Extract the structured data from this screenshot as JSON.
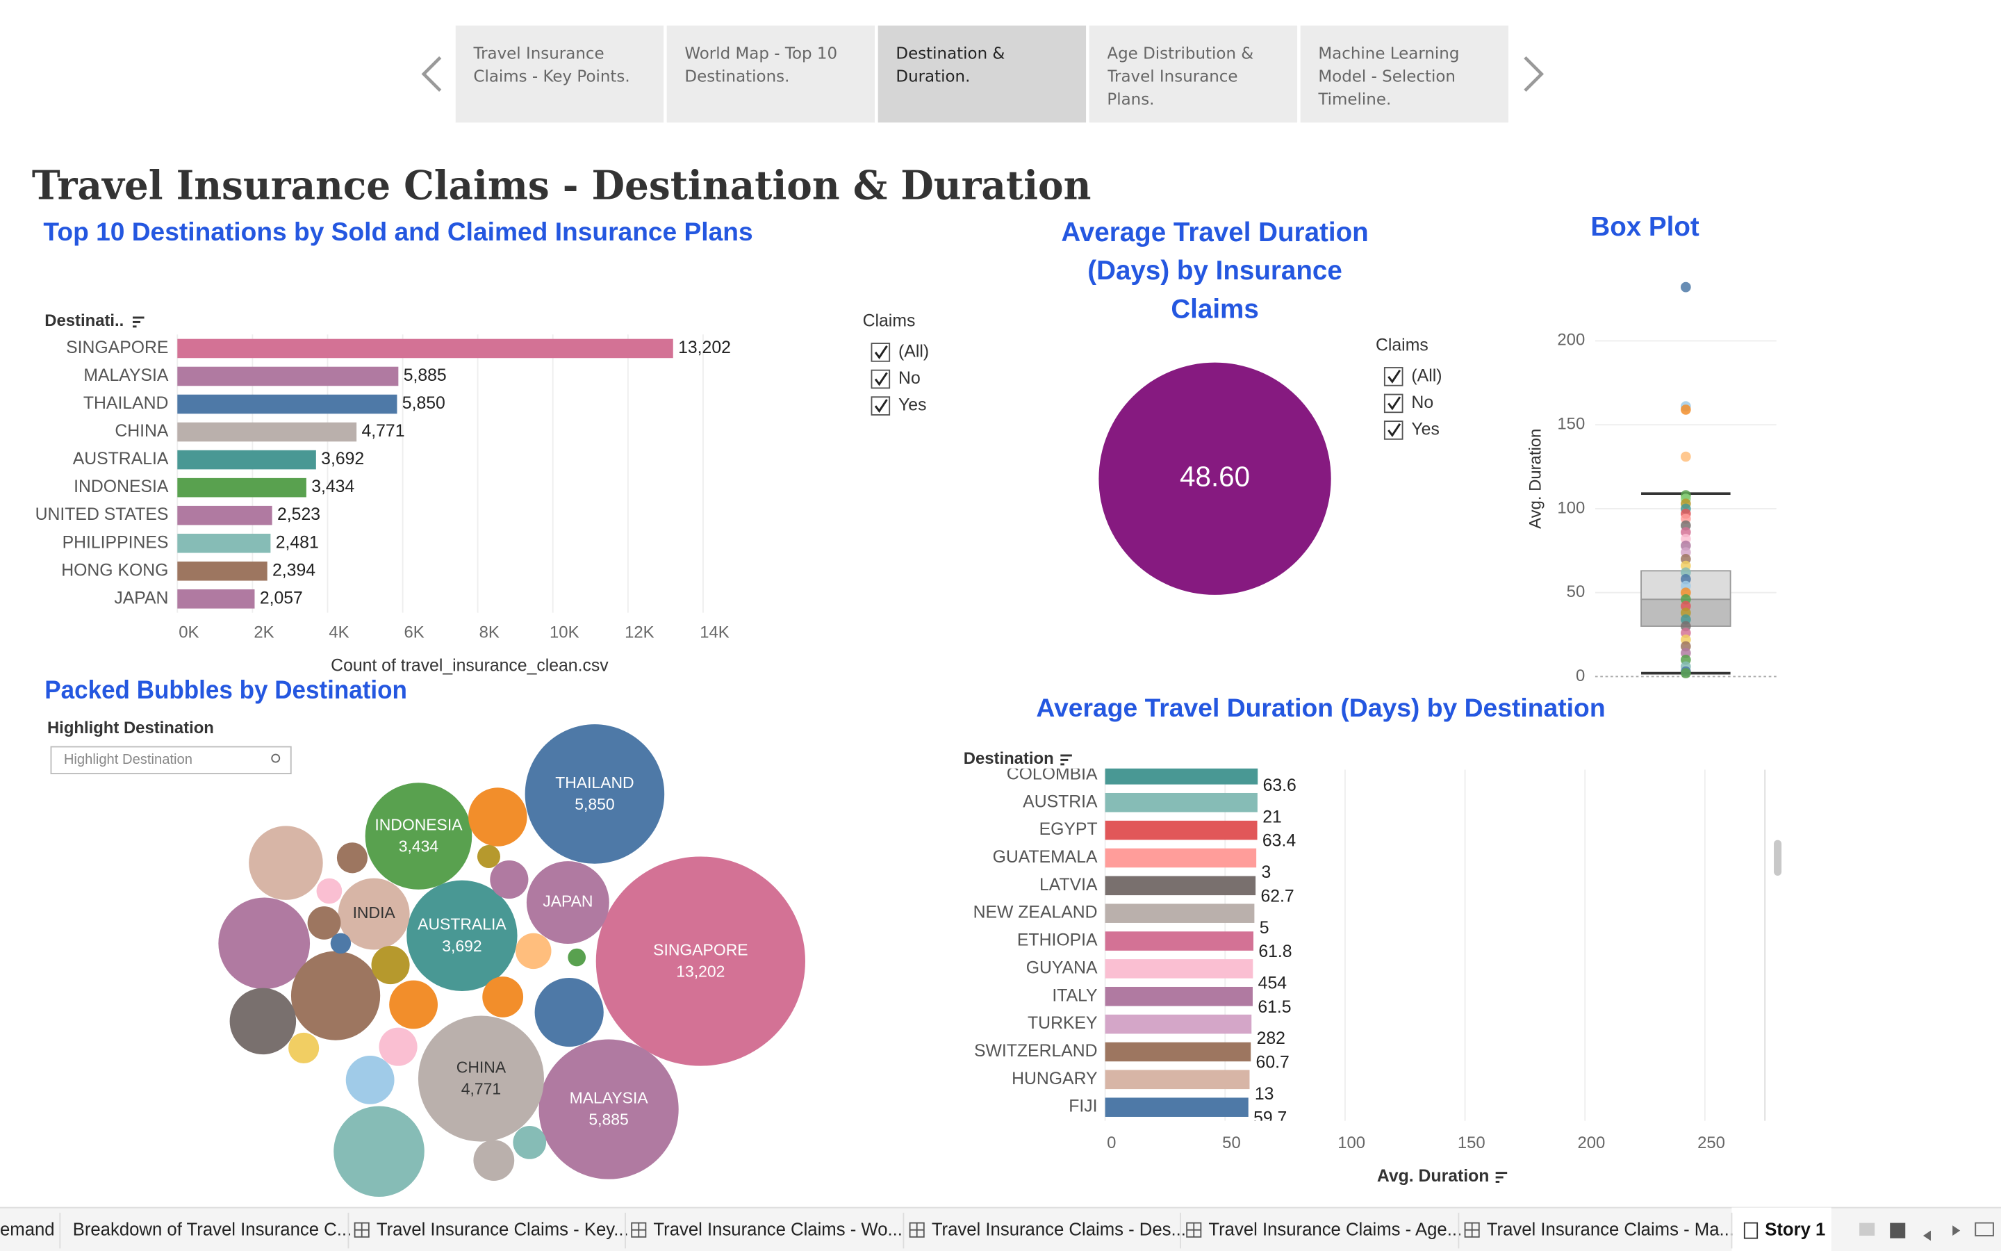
{
  "nav": {
    "tabs": [
      "Travel Insurance Claims - Key Points.",
      "World Map - Top 10 Destinations.",
      "Destination & Duration.",
      "Age Distribution & Travel Insurance Plans.",
      "Machine Learning Model - Selection Timeline."
    ],
    "selected": 2
  },
  "page_title": "Travel Insurance Claims - Destination & Duration",
  "chart_data": [
    {
      "type": "hbar",
      "title": "Top 10 Destinations by Sold and Claimed Insurance Plans",
      "y_header": "Destinati..",
      "x_label": "Count of travel_insurance_clean.csv",
      "categories": [
        "SINGAPORE",
        "MALAYSIA",
        "THAILAND",
        "CHINA",
        "AUSTRALIA",
        "INDONESIA",
        "UNITED STATES",
        "PHILIPPINES",
        "HONG KONG",
        "JAPAN"
      ],
      "values": [
        13202,
        5885,
        5850,
        4771,
        3692,
        3434,
        2523,
        2481,
        2394,
        2057
      ],
      "value_labels": [
        "13,202",
        "5,885",
        "5,850",
        "4,771",
        "3,692",
        "3,434",
        "2,523",
        "2,481",
        "2,394",
        "2,057"
      ],
      "colors": [
        "#d37295",
        "#b07aa1",
        "#4e79a7",
        "#bab0ac",
        "#499894",
        "#59a14f",
        "#b07aa1",
        "#86bcb6",
        "#9d7660",
        "#b07aa1"
      ],
      "xlim": [
        0,
        15600
      ],
      "xticks": [
        {
          "value": 0,
          "label": "0K"
        },
        {
          "value": 2000,
          "label": "2K"
        },
        {
          "value": 4000,
          "label": "4K"
        },
        {
          "value": 6000,
          "label": "6K"
        },
        {
          "value": 8000,
          "label": "8K"
        },
        {
          "value": 10000,
          "label": "10K"
        },
        {
          "value": 12000,
          "label": "12K"
        },
        {
          "value": 14000,
          "label": "14K"
        }
      ],
      "grid": true,
      "filter": {
        "title": "Claims",
        "options": [
          "(All)",
          "No",
          "Yes"
        ]
      }
    },
    {
      "type": "pie",
      "title": "Average Travel Duration (Days) by Insurance Claims",
      "values": [
        48.6
      ],
      "value_labels": [
        "48.60"
      ],
      "color": "#861a80",
      "filter": {
        "title": "Claims",
        "options": [
          "(All)",
          "No",
          "Yes"
        ]
      }
    },
    {
      "type": "box",
      "title": "Box Plot",
      "y_label": "Avg. Duration",
      "ylim": [
        0,
        240
      ],
      "yticks": [
        0,
        50,
        100,
        150,
        200
      ],
      "grid": true,
      "q1": 30,
      "median": 46,
      "q3": 63,
      "whisker_low": 2,
      "whisker_high": 109,
      "values": [
        232,
        161,
        159,
        131,
        108,
        106,
        103,
        100,
        97,
        94,
        90,
        86,
        82,
        78,
        74,
        70,
        66,
        62,
        58,
        54,
        50,
        46,
        42,
        38,
        34,
        30,
        26,
        22,
        18,
        14,
        10,
        6,
        3,
        2
      ],
      "colors": [
        "#4e79a7",
        "#a0cbe8",
        "#f28e2b",
        "#ffbe7d",
        "#59a14f",
        "#8cd17d",
        "#b6992d",
        "#499894",
        "#e15759",
        "#ff9d9a",
        "#79706e",
        "#d37295",
        "#fabfd2",
        "#b07aa1",
        "#d4a6c8",
        "#9d7660",
        "#f1ce63",
        "#86bcb6",
        "#4e79a7",
        "#a0cbe8",
        "#f28e2b",
        "#59a14f",
        "#e15759",
        "#b6992d",
        "#499894",
        "#79706e",
        "#d37295",
        "#f1ce63",
        "#9d7660",
        "#b07aa1",
        "#59a14f",
        "#86bcb6",
        "#4e79a7",
        "#59a14f"
      ]
    },
    {
      "type": "bubble",
      "title": "Packed Bubbles by Destination",
      "highlight_title": "Highlight Destination",
      "highlight_placeholder": "Highlight Destination",
      "categories": [
        "SINGAPORE",
        "THAILAND",
        "MALAYSIA",
        "CHINA",
        "AUSTRALIA",
        "INDONESIA",
        "INDIA",
        "JAPAN",
        null,
        null,
        null,
        null,
        null,
        null,
        null,
        null,
        null,
        null,
        null,
        null,
        null,
        null,
        null,
        null,
        null,
        null,
        null,
        null,
        null,
        null,
        null
      ],
      "values": [
        13202,
        5850,
        5885,
        4771,
        3692,
        3434,
        1540,
        2057,
        2523,
        2481,
        2394,
        1651,
        1327,
        1431,
        1039,
        709,
        709,
        503,
        442,
        442,
        503,
        385,
        442,
        332,
        283,
        332,
        283,
        196,
        126,
        159,
        96
      ],
      "value_labels": [
        "13,202",
        "5,850",
        "5,885",
        "4,771",
        "3,692",
        "3,434",
        null,
        null,
        null,
        null,
        null,
        null,
        null,
        null,
        null,
        null,
        null,
        null,
        null,
        null,
        null,
        null,
        null,
        null,
        null,
        null,
        null,
        null,
        null,
        null,
        null
      ],
      "colors": [
        "#d37295",
        "#4e79a7",
        "#b07aa1",
        "#bab0ac",
        "#499894",
        "#59a14f",
        "#d7b5a6",
        "#b07aa1",
        "#b07aa1",
        "#86bcb6",
        "#9d7660",
        "#d7b5a6",
        "#79706e",
        "#4e79a7",
        "#f28e2b",
        "#a0cbe8",
        "#f28e2b",
        "#bab0ac",
        "#fabfd2",
        "#b07aa1",
        "#f28e2b",
        "#ffbe7d",
        "#b6992d",
        "#86bcb6",
        "#9d7660",
        "#9d7660",
        "#f1ce63",
        "#fabfd2",
        "#4e79a7",
        "#b6992d",
        "#59a14f"
      ]
    },
    {
      "type": "hbar2",
      "title": "Average Travel Duration (Days) by Destination",
      "y_header": "Destination",
      "x_label": "Avg. Duration",
      "categories": [
        "COLOMBIA",
        "AUSTRIA",
        "EGYPT",
        "GUATEMALA",
        "LATVIA",
        "NEW ZEALAND",
        "ETHIOPIA",
        "GUYANA",
        "ITALY",
        "TURKEY",
        "SWITZERLAND",
        "HUNGARY",
        "FIJI"
      ],
      "values": [
        63.6,
        63.5,
        63.4,
        63.0,
        62.7,
        62.2,
        61.8,
        61.6,
        61.5,
        61.0,
        60.7,
        60.2,
        59.7
      ],
      "value_labels": [
        "63.6",
        null,
        "63.4",
        null,
        "62.7",
        null,
        "61.8",
        null,
        "61.5",
        null,
        "60.7",
        null,
        "59.7"
      ],
      "count_labels": [
        null,
        "21",
        null,
        "3",
        null,
        "5",
        null,
        "454",
        null,
        "282",
        null,
        "13",
        null
      ],
      "colors": [
        "#499894",
        "#86bcb6",
        "#e15759",
        "#ff9d9a",
        "#79706e",
        "#bab0ac",
        "#d37295",
        "#fabfd2",
        "#b07aa1",
        "#d4a6c8",
        "#9d7660",
        "#d7b5a6",
        "#4e79a7"
      ],
      "xlim": [
        0,
        275
      ],
      "xticks": [
        0,
        50,
        100,
        150,
        200,
        250
      ],
      "grid": true
    }
  ],
  "sheet_tabs": [
    "emand",
    "Breakdown of Travel Insurance C...",
    "Travel Insurance Claims - Key...",
    "Travel Insurance Claims - Wo...",
    "Travel Insurance Claims - Des...",
    "Travel Insurance Claims - Age...",
    "Travel Insurance Claims - Ma..."
  ],
  "story_tab": "Story 1"
}
